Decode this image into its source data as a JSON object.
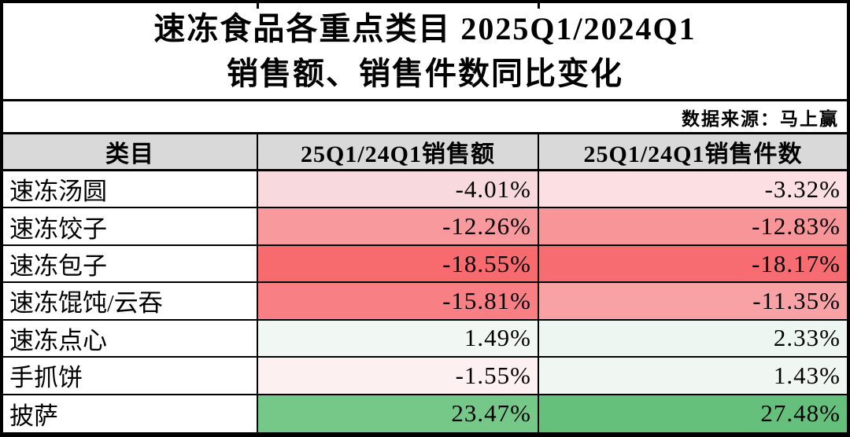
{
  "title": {
    "line1": "速冻食品各重点类目 2025Q1/2024Q1",
    "line2": "销售额、销售件数同比变化"
  },
  "source_note": "数据来源：马上赢",
  "colors": {
    "header_bg": "#d9d9d9",
    "border": "#000000",
    "negative_strong": "#f76a6e",
    "positive_strong": "#64c07a",
    "title_bg": "#ffffff"
  },
  "table": {
    "headers": [
      "类目",
      "25Q1/24Q1销售额",
      "25Q1/24Q1销售件数"
    ],
    "rows": [
      {
        "category": "速冻汤圆",
        "sales": "-4.01%",
        "units": "-3.32%",
        "sales_bg": "#f8dade",
        "units_bg": "#fcdfe2"
      },
      {
        "category": "速冻饺子",
        "sales": "-12.26%",
        "units": "-12.83%",
        "sales_bg": "#f8999d",
        "units_bg": "#f89599"
      },
      {
        "category": "速冻包子",
        "sales": "-18.55%",
        "units": "-18.17%",
        "sales_bg": "#f76a6e",
        "units_bg": "#f76c70"
      },
      {
        "category": "速冻馄饨/云吞",
        "sales": "-15.81%",
        "units": "-11.35%",
        "sales_bg": "#f87f83",
        "units_bg": "#f9a2a6"
      },
      {
        "category": "速冻点心",
        "sales": "1.49%",
        "units": "2.33%",
        "sales_bg": "#f1f8f4",
        "units_bg": "#edf6f0"
      },
      {
        "category": "手抓饼",
        "sales": "-1.55%",
        "units": "1.43%",
        "sales_bg": "#fcf0f1",
        "units_bg": "#f0f7f3"
      },
      {
        "category": "披萨",
        "sales": "23.47%",
        "units": "27.48%",
        "sales_bg": "#75c888",
        "units_bg": "#64c07a"
      }
    ]
  },
  "chart_data": {
    "type": "table",
    "title": "速冻食品各重点类目 2025Q1/2024Q1 销售额、销售件数同比变化",
    "source": "数据来源：马上赢",
    "categories": [
      "速冻汤圆",
      "速冻饺子",
      "速冻包子",
      "速冻馄饨/云吞",
      "速冻点心",
      "手抓饼",
      "披萨"
    ],
    "series": [
      {
        "name": "25Q1/24Q1销售额",
        "unit": "%",
        "values": [
          -4.01,
          -12.26,
          -18.55,
          -15.81,
          1.49,
          -1.55,
          23.47
        ]
      },
      {
        "name": "25Q1/24Q1销售件数",
        "unit": "%",
        "values": [
          -3.32,
          -12.83,
          -18.17,
          -11.35,
          2.33,
          1.43,
          27.48
        ]
      }
    ],
    "layout": {
      "heatmap_scale": "red-white-green",
      "negative_color": "#f76a6e",
      "positive_color": "#64c07a"
    }
  }
}
